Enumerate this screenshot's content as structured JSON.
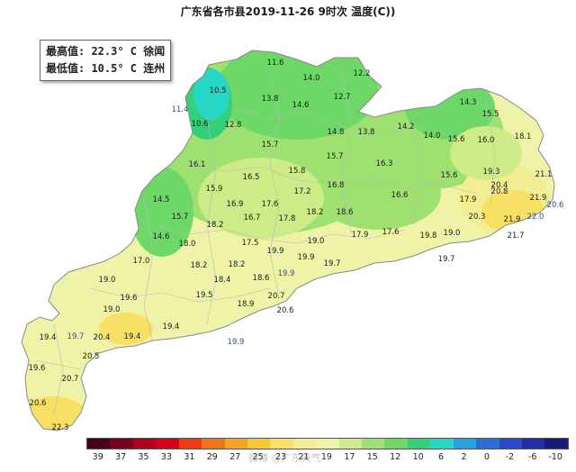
{
  "title": "广东省各市县2019-11-26 9时次 温度(C))",
  "stats": {
    "max_line": "最高值: 22.3° C 徐闻",
    "min_line": "最低值: 10.5° C 连州"
  },
  "legend": {
    "labels": [
      "39",
      "37",
      "35",
      "33",
      "31",
      "29",
      "27",
      "25",
      "23",
      "21",
      "19",
      "17",
      "15",
      "12",
      "10",
      "6",
      "2",
      "0",
      "-2",
      "-6",
      "-10"
    ],
    "colors": [
      "#4a0018",
      "#7a0020",
      "#b0001e",
      "#d80016",
      "#f03a10",
      "#f27418",
      "#f6a424",
      "#f9c934",
      "#f8e065",
      "#f3ee93",
      "#eef3a8",
      "#cdeb86",
      "#9fe171",
      "#6dd868",
      "#35cf79",
      "#28d6c6",
      "#2aa0e0",
      "#2a6ed9",
      "#2a48c8",
      "#242cae",
      "#1a1a7a"
    ]
  },
  "stations": [
    {
      "v": "11.6"
    },
    {
      "v": "14.0"
    },
    {
      "v": "12.2"
    },
    {
      "v": "10.5"
    },
    {
      "v": "12.7"
    },
    {
      "v": "13.8"
    },
    {
      "v": "14.6"
    },
    {
      "v": "11.4"
    },
    {
      "v": "10.6"
    },
    {
      "v": "12.8"
    },
    {
      "v": "14.3"
    },
    {
      "v": "15.5"
    },
    {
      "v": "14.2"
    },
    {
      "v": "14.8"
    },
    {
      "v": "13.8"
    },
    {
      "v": "14.0"
    },
    {
      "v": "15.6"
    },
    {
      "v": "16.0"
    },
    {
      "v": "15.7"
    },
    {
      "v": "15.7"
    },
    {
      "v": "18.1"
    },
    {
      "v": "16.1"
    },
    {
      "v": "16.3"
    },
    {
      "v": "15.8"
    },
    {
      "v": "16.5"
    },
    {
      "v": "19.3"
    },
    {
      "v": "21.1"
    },
    {
      "v": "15.9"
    },
    {
      "v": "15.6"
    },
    {
      "v": "20.4"
    },
    {
      "v": "17.2"
    },
    {
      "v": "16.8"
    },
    {
      "v": "14.5"
    },
    {
      "v": "16.9"
    },
    {
      "v": "17.6"
    },
    {
      "v": "16.6"
    },
    {
      "v": "20.8"
    },
    {
      "v": "21.9"
    },
    {
      "v": "20.6"
    },
    {
      "v": "17.9"
    },
    {
      "v": "15.7"
    },
    {
      "v": "18.2"
    },
    {
      "v": "18.6"
    },
    {
      "v": "16.7"
    },
    {
      "v": "17.8"
    },
    {
      "v": "20.3"
    },
    {
      "v": "22.0"
    },
    {
      "v": "18.2"
    },
    {
      "v": "21.9"
    },
    {
      "v": "14.6"
    },
    {
      "v": "17.9"
    },
    {
      "v": "17.6"
    },
    {
      "v": "19.8"
    },
    {
      "v": "19.0"
    },
    {
      "v": "21.7"
    },
    {
      "v": "18.0"
    },
    {
      "v": "17.5"
    },
    {
      "v": "19.0"
    },
    {
      "v": "19.9"
    },
    {
      "v": "17.0"
    },
    {
      "v": "18.2"
    },
    {
      "v": "18.2"
    },
    {
      "v": "19.9"
    },
    {
      "v": "19.7"
    },
    {
      "v": "19.7"
    },
    {
      "v": "19.0"
    },
    {
      "v": "19.9"
    },
    {
      "v": "18.4"
    },
    {
      "v": "18.6"
    },
    {
      "v": "19.6"
    },
    {
      "v": "19.5"
    },
    {
      "v": "20.7"
    },
    {
      "v": "19.0"
    },
    {
      "v": "18.9"
    },
    {
      "v": "20.6"
    },
    {
      "v": "19.4"
    },
    {
      "v": "19.7"
    },
    {
      "v": "19.4"
    },
    {
      "v": "20.4"
    },
    {
      "v": "19.4"
    },
    {
      "v": "19.9"
    },
    {
      "v": "20.5"
    },
    {
      "v": "19.6"
    },
    {
      "v": "20.7"
    },
    {
      "v": "20.6"
    },
    {
      "v": "22.3"
    }
  ],
  "watermark": "微博 @广东天气"
}
